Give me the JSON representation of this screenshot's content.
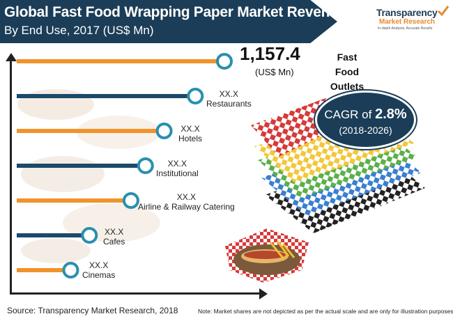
{
  "title": "Global Fast Food Wrapping Paper Market Revenue",
  "subtitle": "By End Use, 2017 (US$ Mn)",
  "logo": {
    "line1": "Transparency",
    "line2": "Market Research",
    "tagline": "In-depth Analysis, Accurate Results"
  },
  "highlight": {
    "value": "1,157.4",
    "unit": "(US$ Mn)",
    "name": "Fast Food Outlets"
  },
  "cagr": {
    "prefix": "CAGR of ",
    "value": "2.8%",
    "period": "(2018-2026)"
  },
  "chart_data": {
    "type": "bar",
    "orientation": "horizontal",
    "categories": [
      "Fast Food Outlets",
      "Restaurants",
      "Hotels",
      "Institutional",
      "Airline & Railway Catering",
      "Cafes",
      "Cinemas"
    ],
    "value_labels": [
      "1,157.4",
      "XX.X",
      "XX.X",
      "XX.X",
      "XX.X",
      "XX.X",
      "XX.X"
    ],
    "values": [
      1157.4,
      null,
      null,
      null,
      null,
      null,
      null
    ],
    "relative_lengths": [
      1.0,
      0.86,
      0.71,
      0.62,
      0.55,
      0.35,
      0.26
    ],
    "bar_colors": [
      "#f0932b",
      "#1b4a6b",
      "#f0932b",
      "#1b4a6b",
      "#f0932b",
      "#1b4a6b",
      "#f0932b"
    ],
    "marker_color": "#2a8fae",
    "unit": "US$ Mn"
  },
  "source": "Source: Transparency Market Research, 2018",
  "note": "Note: Market shares are not depicted as per the actual scale and are only for illustration purposes."
}
